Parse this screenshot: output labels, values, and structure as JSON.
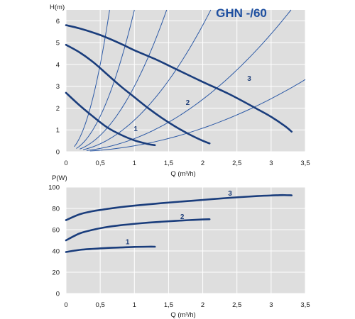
{
  "colors": {
    "plot_background": "#dedede",
    "grid": "#ffffff",
    "curve": "#1a3d7c",
    "system_curve": "#2d5aa6",
    "title": "#1e4fa0"
  },
  "chart_data": [
    {
      "type": "line",
      "title": "GHN -/60",
      "ylabel": "H(m)",
      "xlabel": "Q (m³/h)",
      "xlim": [
        0,
        3.5
      ],
      "ylim": [
        0,
        6.5
      ],
      "grid": true,
      "x_ticks": [
        "0",
        "0,5",
        "1",
        "1,5",
        "2",
        "2,5",
        "3",
        "3,5"
      ],
      "y_ticks": [
        "0",
        "1",
        "2",
        "3",
        "4",
        "5",
        "6"
      ],
      "series": [
        {
          "name": "1",
          "label_at": [
            1.02,
            0.95
          ],
          "points": [
            [
              0,
              2.7
            ],
            [
              0.2,
              2.12
            ],
            [
              0.4,
              1.6
            ],
            [
              0.6,
              1.12
            ],
            [
              0.8,
              0.78
            ],
            [
              1.0,
              0.52
            ],
            [
              1.2,
              0.35
            ],
            [
              1.3,
              0.3
            ]
          ]
        },
        {
          "name": "2",
          "label_at": [
            1.78,
            2.15
          ],
          "points": [
            [
              0,
              4.9
            ],
            [
              0.2,
              4.55
            ],
            [
              0.4,
              4.1
            ],
            [
              0.6,
              3.55
            ],
            [
              0.8,
              3.0
            ],
            [
              1.0,
              2.5
            ],
            [
              1.2,
              2.0
            ],
            [
              1.4,
              1.55
            ],
            [
              1.6,
              1.15
            ],
            [
              1.8,
              0.8
            ],
            [
              2.0,
              0.5
            ],
            [
              2.1,
              0.38
            ]
          ]
        },
        {
          "name": "3",
          "label_at": [
            2.68,
            3.25
          ],
          "points": [
            [
              0,
              5.8
            ],
            [
              0.2,
              5.65
            ],
            [
              0.5,
              5.35
            ],
            [
              0.8,
              4.95
            ],
            [
              1.0,
              4.65
            ],
            [
              1.3,
              4.25
            ],
            [
              1.6,
              3.8
            ],
            [
              2.0,
              3.2
            ],
            [
              2.4,
              2.62
            ],
            [
              2.8,
              1.95
            ],
            [
              3.0,
              1.6
            ],
            [
              3.2,
              1.18
            ],
            [
              3.3,
              0.92
            ]
          ]
        }
      ],
      "system_curves": [
        {
          "k": 16.0,
          "q_start": 0.12,
          "q_end": 0.65
        },
        {
          "k": 6.5,
          "q_start": 0.15,
          "q_end": 1.02
        },
        {
          "k": 3.0,
          "q_start": 0.2,
          "q_end": 1.5
        },
        {
          "k": 1.45,
          "q_start": 0.25,
          "q_end": 2.2
        },
        {
          "k": 0.6,
          "q_start": 0.3,
          "q_end": 3.3
        },
        {
          "k": 0.27,
          "q_start": 0.35,
          "q_end": 3.5
        }
      ]
    },
    {
      "type": "line",
      "title": "",
      "ylabel": "P(W)",
      "xlabel": "Q (m³/h)",
      "xlim": [
        0,
        3.5
      ],
      "ylim": [
        0,
        100
      ],
      "grid": true,
      "x_ticks": [
        "0",
        "0,5",
        "1",
        "1,5",
        "2",
        "2,5",
        "3",
        "3,5"
      ],
      "y_ticks": [
        "0",
        "20",
        "40",
        "60",
        "80",
        "100"
      ],
      "series": [
        {
          "name": "1",
          "label_at": [
            0.9,
            46.5
          ],
          "points": [
            [
              0,
              39
            ],
            [
              0.2,
              41
            ],
            [
              0.4,
              42
            ],
            [
              0.6,
              42.8
            ],
            [
              0.8,
              43.3
            ],
            [
              1.0,
              43.8
            ],
            [
              1.2,
              44
            ],
            [
              1.3,
              44
            ]
          ]
        },
        {
          "name": "2",
          "label_at": [
            1.7,
            70
          ],
          "points": [
            [
              0,
              50
            ],
            [
              0.2,
              56.5
            ],
            [
              0.4,
              60
            ],
            [
              0.6,
              62.5
            ],
            [
              0.8,
              64.2
            ],
            [
              1.0,
              65.5
            ],
            [
              1.2,
              66.6
            ],
            [
              1.4,
              67.5
            ],
            [
              1.6,
              68.3
            ],
            [
              1.8,
              69
            ],
            [
              2.0,
              69.6
            ],
            [
              2.1,
              69.8
            ]
          ]
        },
        {
          "name": "3",
          "label_at": [
            2.4,
            92
          ],
          "points": [
            [
              0,
              69
            ],
            [
              0.2,
              74.5
            ],
            [
              0.4,
              77.5
            ],
            [
              0.6,
              79.5
            ],
            [
              0.8,
              81.2
            ],
            [
              1.0,
              82.6
            ],
            [
              1.3,
              84.4
            ],
            [
              1.6,
              86
            ],
            [
              2.0,
              88
            ],
            [
              2.4,
              90
            ],
            [
              2.8,
              91.6
            ],
            [
              3.1,
              92.4
            ],
            [
              3.2,
              92.5
            ],
            [
              3.3,
              92.3
            ]
          ]
        }
      ]
    }
  ]
}
